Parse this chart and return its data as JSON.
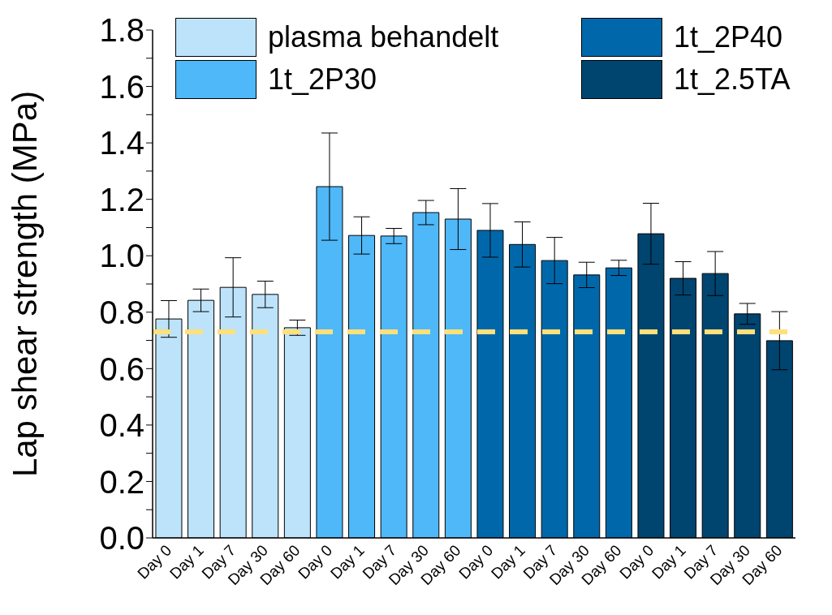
{
  "chart_data": {
    "type": "bar",
    "ylabel": "Lap shear strength (MPa)",
    "stacked": true,
    "legend": "top",
    "grid": false,
    "categories": [
      "Day 0",
      "Day 1",
      "Day 7",
      "Day 30",
      "Day 60",
      "Day 0",
      "Day 1",
      "Day 7",
      "Day 30",
      "Day 60",
      "Day 0",
      "Day 1",
      "Day 7",
      "Day 30",
      "Day 60",
      "Day 0",
      "Day 1",
      "Day 7",
      "Day 30",
      "Day 60"
    ],
    "series": [
      {
        "name": "plasma behandelt",
        "color": "#bde3fb",
        "values": [
          0.776,
          0.842,
          0.888,
          0.863,
          0.745,
          null,
          null,
          null,
          null,
          null,
          null,
          null,
          null,
          null,
          null,
          null,
          null,
          null,
          null,
          null
        ],
        "errors": [
          0.065,
          0.04,
          0.105,
          0.047,
          0.027,
          null,
          null,
          null,
          null,
          null,
          null,
          null,
          null,
          null,
          null,
          null,
          null,
          null,
          null,
          null
        ]
      },
      {
        "name": "1t_2P30",
        "color": "#4fb8f8",
        "values": [
          null,
          null,
          null,
          null,
          null,
          1.245,
          1.072,
          1.07,
          1.153,
          1.13,
          null,
          null,
          null,
          null,
          null,
          null,
          null,
          null,
          null,
          null
        ],
        "errors": [
          null,
          null,
          null,
          null,
          null,
          0.19,
          0.066,
          0.027,
          0.043,
          0.108,
          null,
          null,
          null,
          null,
          null,
          null,
          null,
          null,
          null,
          null
        ]
      },
      {
        "name": "1t_2P40",
        "color": "#0068aa",
        "values": [
          null,
          null,
          null,
          null,
          null,
          null,
          null,
          null,
          null,
          null,
          1.09,
          1.04,
          0.983,
          0.932,
          0.957,
          null,
          null,
          null,
          null,
          null
        ],
        "errors": [
          null,
          null,
          null,
          null,
          null,
          null,
          null,
          null,
          null,
          null,
          0.095,
          0.08,
          0.082,
          0.045,
          0.027,
          null,
          null,
          null,
          null,
          null
        ]
      },
      {
        "name": "1t_2.5TA",
        "color": "#004470",
        "values": [
          null,
          null,
          null,
          null,
          null,
          null,
          null,
          null,
          null,
          null,
          null,
          null,
          null,
          null,
          null,
          1.078,
          0.92,
          0.937,
          0.794,
          0.699
        ],
        "errors": [
          null,
          null,
          null,
          null,
          null,
          null,
          null,
          null,
          null,
          null,
          null,
          null,
          null,
          null,
          null,
          0.108,
          0.059,
          0.078,
          0.037,
          0.103
        ]
      }
    ],
    "ylim": [
      0,
      1.8
    ],
    "yticks": [
      {
        "value": 0,
        "label": "0.0"
      },
      {
        "value": 0.1,
        "label": null
      },
      {
        "value": 0.2,
        "label": "0.2"
      },
      {
        "value": 0.3,
        "label": null
      },
      {
        "value": 0.4,
        "label": "0.4"
      },
      {
        "value": 0.5,
        "label": null
      },
      {
        "value": 0.6,
        "label": "0.6"
      },
      {
        "value": 0.7,
        "label": null
      },
      {
        "value": 0.8,
        "label": "0.8"
      },
      {
        "value": 0.9,
        "label": null
      },
      {
        "value": 1.0,
        "label": "1.0"
      },
      {
        "value": 1.1,
        "label": null
      },
      {
        "value": 1.2,
        "label": "1.2"
      },
      {
        "value": 1.3,
        "label": null
      },
      {
        "value": 1.4,
        "label": "1.4"
      },
      {
        "value": 1.5,
        "label": null
      },
      {
        "value": 1.6,
        "label": "1.6"
      },
      {
        "value": 1.7,
        "label": null
      },
      {
        "value": 1.8,
        "label": "1.8"
      }
    ],
    "ref_lines": [
      {
        "axis": "y",
        "value": 0.73,
        "color": "#ffe07a",
        "line_style": "dashed"
      }
    ]
  }
}
